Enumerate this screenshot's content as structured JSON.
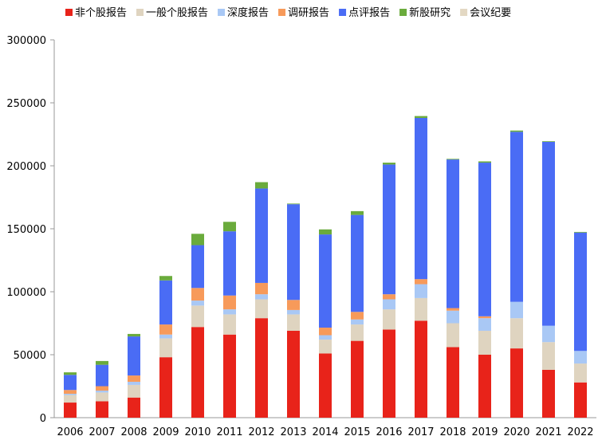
{
  "chart_data": {
    "type": "bar",
    "stacked": true,
    "categories": [
      "2006",
      "2007",
      "2008",
      "2009",
      "2010",
      "2011",
      "2012",
      "2013",
      "2014",
      "2015",
      "2016",
      "2017",
      "2018",
      "2019",
      "2020",
      "2021",
      "2022"
    ],
    "ylim": [
      0,
      300000
    ],
    "yticks": [
      0,
      50000,
      100000,
      150000,
      200000,
      250000,
      300000
    ],
    "ytick_labels": [
      "0",
      "50000",
      "100000",
      "150000",
      "200000",
      "250000",
      "300000"
    ],
    "legend_position": "top",
    "grid": false,
    "series": [
      {
        "name": "非个股报告",
        "color": "#e8231a",
        "values": [
          12000,
          13000,
          16000,
          48000,
          72000,
          66000,
          79000,
          69000,
          51000,
          61000,
          70000,
          77000,
          56000,
          50000,
          55000,
          38000,
          28000
        ]
      },
      {
        "name": "一般个股报告",
        "color": "#dfd4c0",
        "values": [
          6000,
          7000,
          10000,
          15000,
          17000,
          16000,
          15000,
          13000,
          11000,
          13000,
          16000,
          18000,
          19000,
          19000,
          24000,
          22000,
          15000
        ]
      },
      {
        "name": "深度报告",
        "color": "#a9c8f5",
        "values": [
          1000,
          1500,
          2500,
          3000,
          4000,
          4000,
          4000,
          3500,
          3500,
          4000,
          8000,
          11000,
          10000,
          10000,
          13000,
          13000,
          10000
        ]
      },
      {
        "name": "调研报告",
        "color": "#f79a5a",
        "values": [
          3000,
          3500,
          5000,
          8000,
          10000,
          11000,
          9000,
          8000,
          6000,
          6000,
          4000,
          4000,
          2000,
          1500,
          0,
          0,
          0
        ]
      },
      {
        "name": "点评报告",
        "color": "#4a6cf5",
        "values": [
          12000,
          17000,
          31000,
          35000,
          34000,
          51000,
          75000,
          76000,
          74000,
          77000,
          103000,
          128000,
          118000,
          122000,
          135000,
          146000,
          94000
        ]
      },
      {
        "name": "新股研究",
        "color": "#6aab3c",
        "values": [
          2000,
          3000,
          2000,
          3500,
          9000,
          7500,
          5000,
          500,
          4000,
          3000,
          1500,
          1500,
          500,
          1000,
          1000,
          500,
          500
        ]
      },
      {
        "name": "会议纪要",
        "color": "#e3d8c3",
        "values": [
          0,
          0,
          0,
          0,
          0,
          0,
          0,
          0,
          0,
          0,
          0,
          0,
          0,
          0,
          0,
          0,
          0
        ]
      }
    ]
  }
}
